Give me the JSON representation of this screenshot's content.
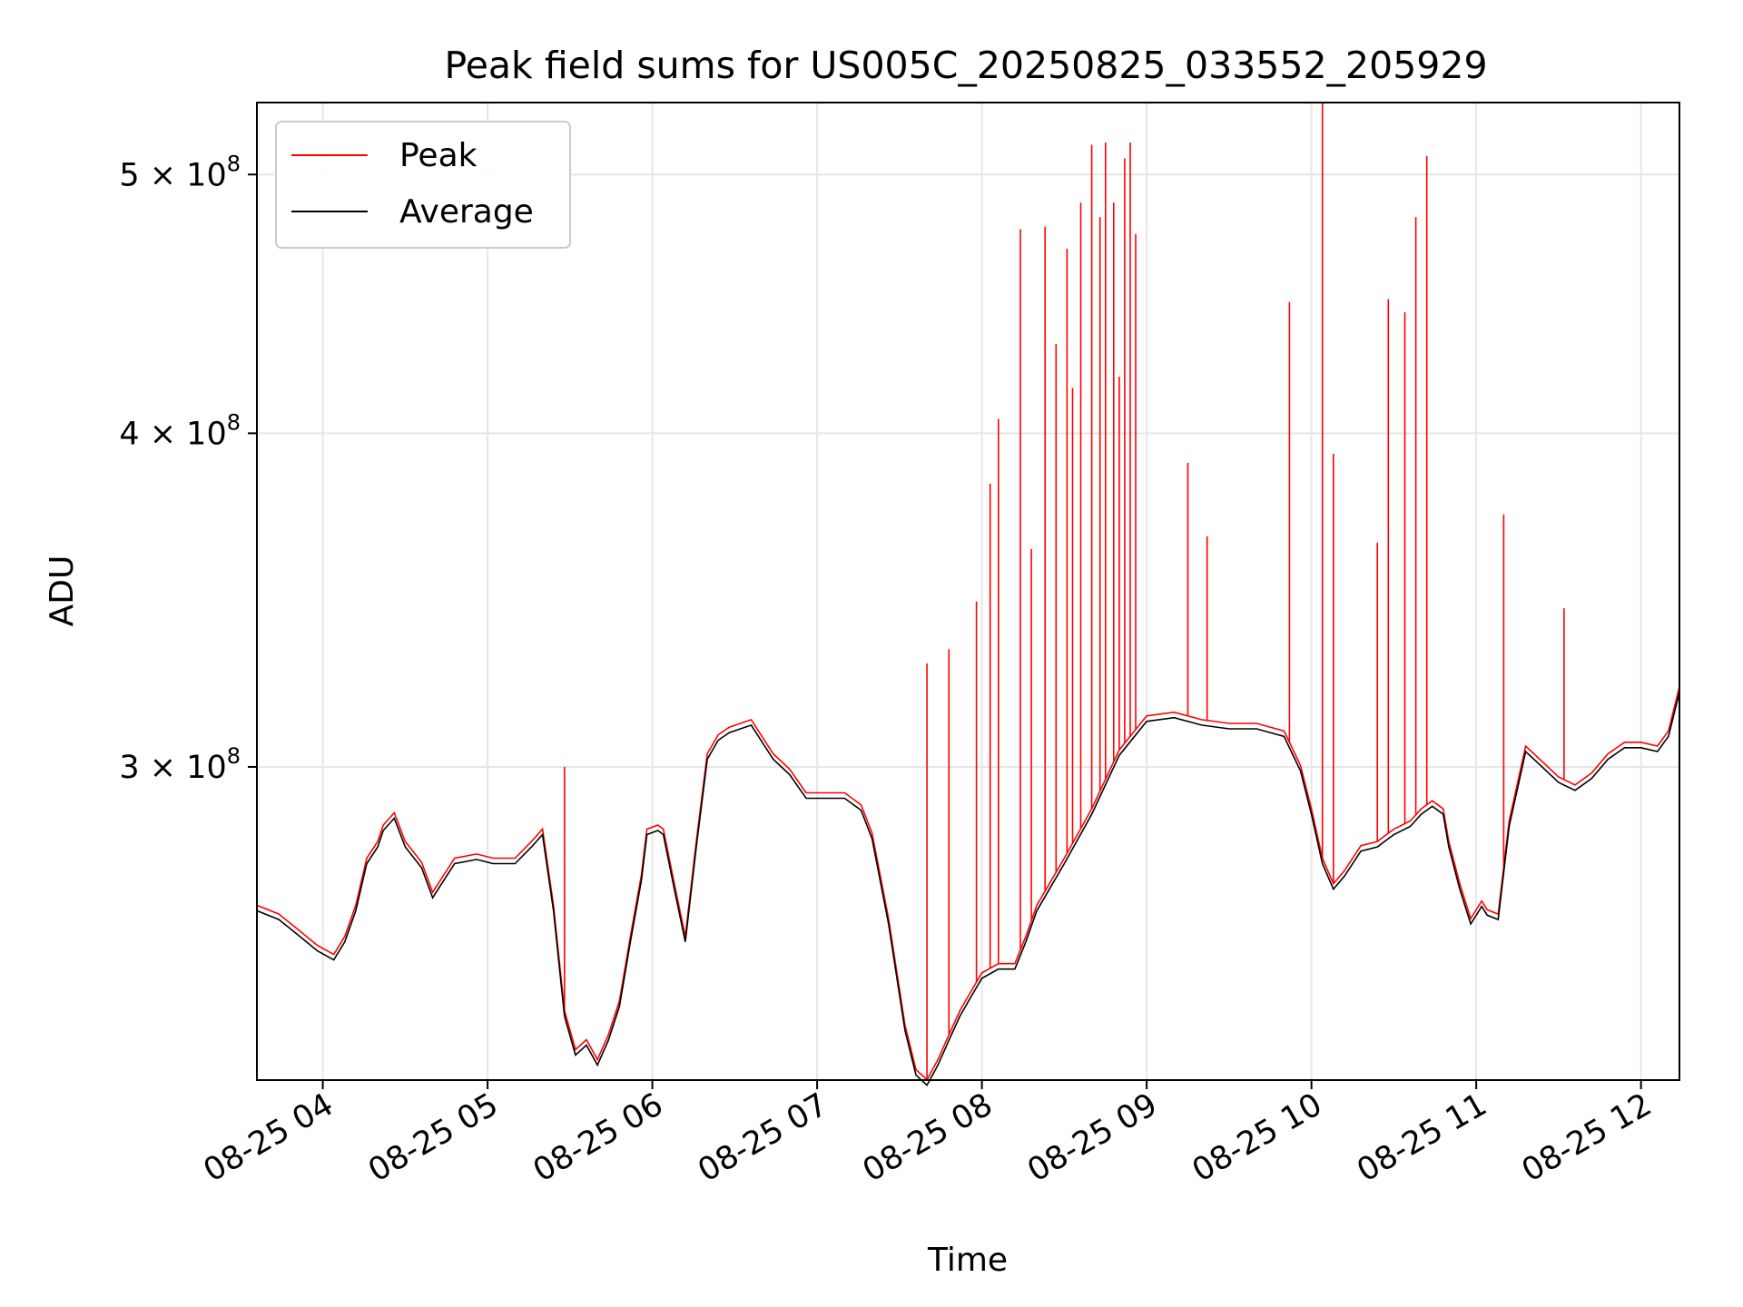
{
  "chart_data": {
    "type": "line",
    "title": "Peak field sums for US005C_20250825_033552_205929",
    "xlabel": "Time",
    "ylabel": "ADU",
    "yscale": "log",
    "ylim": [
      229000000,
      532000000
    ],
    "xlim": [
      "2025-08-25 03:36",
      "2025-08-25 12:14"
    ],
    "grid": true,
    "legend_position": "upper-left",
    "x_tick_labels": [
      "08-25 04",
      "08-25 05",
      "08-25 06",
      "08-25 07",
      "08-25 08",
      "08-25 09",
      "08-25 10",
      "08-25 11",
      "08-25 12"
    ],
    "x_ticks": [
      "2025-08-25 04:00",
      "2025-08-25 05:00",
      "2025-08-25 06:00",
      "2025-08-25 07:00",
      "2025-08-25 08:00",
      "2025-08-25 09:00",
      "2025-08-25 10:00",
      "2025-08-25 11:00",
      "2025-08-25 12:00"
    ],
    "y_tick_values": [
      300000000,
      400000000,
      500000000
    ],
    "y_tick_labels": [
      {
        "mantissa": "5",
        "exponent": "8"
      },
      {
        "mantissa": "4",
        "exponent": "8"
      },
      {
        "mantissa": "3",
        "exponent": "8"
      }
    ],
    "series": [
      {
        "name": "Peak",
        "color": "#ff0000",
        "spikes": [
          {
            "x": "2025-08-25 05:28",
            "y": 300000000
          },
          {
            "x": "2025-08-25 07:40",
            "y": 328000000
          },
          {
            "x": "2025-08-25 07:48",
            "y": 332000000
          },
          {
            "x": "2025-08-25 07:58",
            "y": 346000000
          },
          {
            "x": "2025-08-25 08:03",
            "y": 383000000
          },
          {
            "x": "2025-08-25 08:06",
            "y": 405000000
          },
          {
            "x": "2025-08-25 08:14",
            "y": 477000000
          },
          {
            "x": "2025-08-25 08:18",
            "y": 362000000
          },
          {
            "x": "2025-08-25 08:23",
            "y": 478000000
          },
          {
            "x": "2025-08-25 08:27",
            "y": 432000000
          },
          {
            "x": "2025-08-25 08:31",
            "y": 469000000
          },
          {
            "x": "2025-08-25 08:33",
            "y": 416000000
          },
          {
            "x": "2025-08-25 08:36",
            "y": 488000000
          },
          {
            "x": "2025-08-25 08:40",
            "y": 513000000
          },
          {
            "x": "2025-08-25 08:43",
            "y": 482000000
          },
          {
            "x": "2025-08-25 08:45",
            "y": 514000000
          },
          {
            "x": "2025-08-25 08:48",
            "y": 488000000
          },
          {
            "x": "2025-08-25 08:50",
            "y": 420000000
          },
          {
            "x": "2025-08-25 08:52",
            "y": 507000000
          },
          {
            "x": "2025-08-25 08:54",
            "y": 514000000
          },
          {
            "x": "2025-08-25 08:56",
            "y": 475000000
          },
          {
            "x": "2025-08-25 09:15",
            "y": 390000000
          },
          {
            "x": "2025-08-25 09:22",
            "y": 366000000
          },
          {
            "x": "2025-08-25 09:52",
            "y": 448000000
          },
          {
            "x": "2025-08-25 10:04",
            "y": 533000000
          },
          {
            "x": "2025-08-25 10:08",
            "y": 393000000
          },
          {
            "x": "2025-08-25 10:24",
            "y": 364000000
          },
          {
            "x": "2025-08-25 10:28",
            "y": 449000000
          },
          {
            "x": "2025-08-25 10:34",
            "y": 444000000
          },
          {
            "x": "2025-08-25 10:38",
            "y": 482000000
          },
          {
            "x": "2025-08-25 10:42",
            "y": 508000000
          },
          {
            "x": "2025-08-25 11:10",
            "y": 373000000
          },
          {
            "x": "2025-08-25 11:32",
            "y": 344000000
          }
        ]
      },
      {
        "name": "Average",
        "color": "#000000",
        "x": [
          "2025-08-25 03:36",
          "2025-08-25 03:44",
          "2025-08-25 03:50",
          "2025-08-25 03:58",
          "2025-08-25 04:04",
          "2025-08-25 04:08",
          "2025-08-25 04:12",
          "2025-08-25 04:16",
          "2025-08-25 04:20",
          "2025-08-25 04:22",
          "2025-08-25 04:26",
          "2025-08-25 04:30",
          "2025-08-25 04:36",
          "2025-08-25 04:40",
          "2025-08-25 04:48",
          "2025-08-25 04:56",
          "2025-08-25 05:02",
          "2025-08-25 05:10",
          "2025-08-25 05:16",
          "2025-08-25 05:20",
          "2025-08-25 05:24",
          "2025-08-25 05:28",
          "2025-08-25 05:32",
          "2025-08-25 05:36",
          "2025-08-25 05:40",
          "2025-08-25 05:44",
          "2025-08-25 05:48",
          "2025-08-25 05:52",
          "2025-08-25 05:56",
          "2025-08-25 05:58",
          "2025-08-25 06:02",
          "2025-08-25 06:04",
          "2025-08-25 06:08",
          "2025-08-25 06:12",
          "2025-08-25 06:16",
          "2025-08-25 06:20",
          "2025-08-25 06:24",
          "2025-08-25 06:28",
          "2025-08-25 06:36",
          "2025-08-25 06:44",
          "2025-08-25 06:50",
          "2025-08-25 06:56",
          "2025-08-25 07:02",
          "2025-08-25 07:10",
          "2025-08-25 07:16",
          "2025-08-25 07:20",
          "2025-08-25 07:26",
          "2025-08-25 07:32",
          "2025-08-25 07:36",
          "2025-08-25 07:40",
          "2025-08-25 07:44",
          "2025-08-25 07:48",
          "2025-08-25 07:52",
          "2025-08-25 07:56",
          "2025-08-25 08:00",
          "2025-08-25 08:06",
          "2025-08-25 08:12",
          "2025-08-25 08:16",
          "2025-08-25 08:20",
          "2025-08-25 08:30",
          "2025-08-25 08:40",
          "2025-08-25 08:50",
          "2025-08-25 09:00",
          "2025-08-25 09:10",
          "2025-08-25 09:20",
          "2025-08-25 09:30",
          "2025-08-25 09:40",
          "2025-08-25 09:50",
          "2025-08-25 09:56",
          "2025-08-25 10:00",
          "2025-08-25 10:04",
          "2025-08-25 10:08",
          "2025-08-25 10:12",
          "2025-08-25 10:18",
          "2025-08-25 10:24",
          "2025-08-25 10:30",
          "2025-08-25 10:36",
          "2025-08-25 10:40",
          "2025-08-25 10:44",
          "2025-08-25 10:48",
          "2025-08-25 10:50",
          "2025-08-25 10:54",
          "2025-08-25 10:58",
          "2025-08-25 11:02",
          "2025-08-25 11:04",
          "2025-08-25 11:08",
          "2025-08-25 11:12",
          "2025-08-25 11:18",
          "2025-08-25 11:24",
          "2025-08-25 11:30",
          "2025-08-25 11:36",
          "2025-08-25 11:42",
          "2025-08-25 11:48",
          "2025-08-25 11:54",
          "2025-08-25 12:00",
          "2025-08-25 12:06",
          "2025-08-25 12:10",
          "2025-08-25 12:14"
        ],
        "y": [
          265000000,
          263000000,
          260000000,
          256000000,
          254000000,
          258000000,
          265000000,
          276000000,
          280000000,
          284000000,
          287000000,
          280000000,
          275000000,
          268000000,
          276000000,
          277000000,
          276000000,
          276000000,
          280000000,
          283000000,
          265000000,
          242000000,
          234000000,
          236000000,
          232000000,
          237000000,
          244000000,
          258000000,
          272000000,
          283000000,
          284000000,
          283000000,
          270000000,
          258000000,
          280000000,
          302000000,
          307000000,
          309000000,
          311000000,
          302000000,
          298000000,
          292000000,
          292000000,
          292000000,
          289000000,
          282000000,
          262000000,
          239000000,
          230000000,
          228000000,
          232000000,
          237000000,
          242000000,
          246000000,
          250000000,
          252000000,
          252000000,
          258000000,
          265000000,
          276000000,
          288000000,
          303000000,
          312000000,
          313000000,
          311000000,
          310000000,
          310000000,
          308000000,
          299000000,
          288000000,
          276000000,
          270000000,
          273000000,
          279000000,
          280000000,
          283000000,
          285000000,
          288000000,
          290000000,
          288000000,
          280000000,
          270000000,
          262000000,
          266000000,
          264000000,
          263000000,
          285000000,
          304000000,
          300000000,
          296000000,
          294000000,
          297000000,
          302000000,
          305000000,
          305000000,
          304000000,
          308000000,
          320000000
        ]
      }
    ]
  }
}
